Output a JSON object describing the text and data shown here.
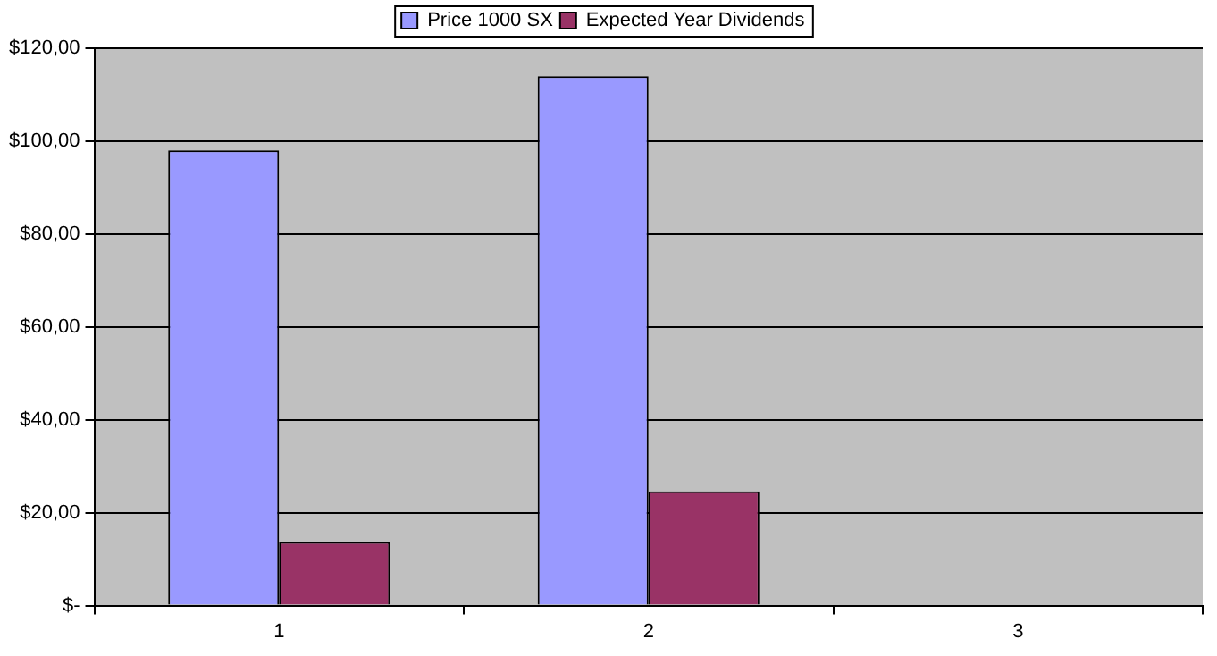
{
  "chart_data": {
    "type": "bar",
    "categories": [
      "1",
      "2",
      "3"
    ],
    "series": [
      {
        "name": "Price 1000 SX",
        "color": "#9999ff",
        "values": [
          98,
          114,
          null
        ]
      },
      {
        "name": "Expected Year Dividends",
        "color": "#993366",
        "values": [
          13.7,
          24.6,
          null
        ]
      }
    ],
    "ylim": [
      0,
      120
    ],
    "yticks": [
      {
        "value": 0,
        "label": "$-"
      },
      {
        "value": 20,
        "label": "$20,00"
      },
      {
        "value": 40,
        "label": "$40,00"
      },
      {
        "value": 60,
        "label": "$60,00"
      },
      {
        "value": 80,
        "label": "$80,00"
      },
      {
        "value": 100,
        "label": "$100,00"
      },
      {
        "value": 120,
        "label": "$120,00"
      }
    ],
    "grid": "y",
    "legend": "top"
  }
}
